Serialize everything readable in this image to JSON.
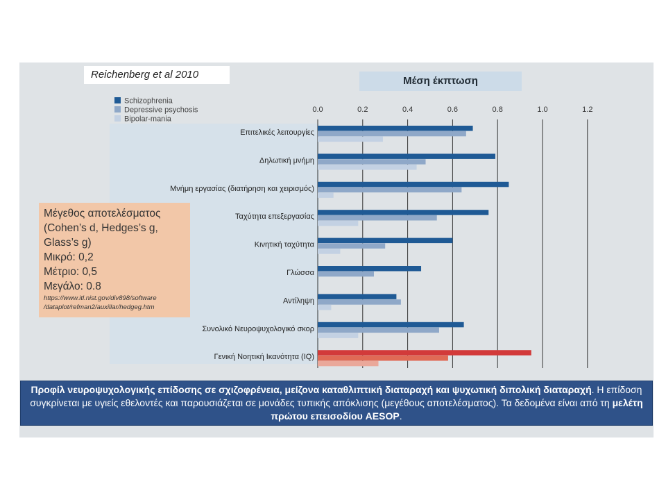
{
  "citation": "Reichenberg et al 2010",
  "chart_data": {
    "type": "bar",
    "orientation": "horizontal",
    "title": "Μέση έκπτωση",
    "xlim": [
      0,
      1.2
    ],
    "x_ticks": [
      "0.0",
      "0.2",
      "0.4",
      "0.6",
      "0.8",
      "1.0",
      "1.2"
    ],
    "grid": true,
    "legend_position": "top-left",
    "categories": [
      "Επιτελικές λειτουργίες",
      "Δηλωτική μνήμη",
      "Μνήμη εργασίας (διατήρηση και χειρισμός)",
      "Ταχύτητα επεξεργασίας",
      "Κινητική ταχύτητα",
      "Γλώσσα",
      "Αντίληψη",
      "Συνολικό Νευροψυχολογικό σκορ",
      "Γενική Νοητική Ικανότητα (IQ)"
    ],
    "series": [
      {
        "name": "Schizophrenia",
        "values": [
          0.69,
          0.79,
          0.85,
          0.76,
          0.6,
          0.46,
          0.35,
          0.65,
          0.95
        ],
        "color": "#1f5a95"
      },
      {
        "name": "Depressive psychosis",
        "values": [
          0.66,
          0.48,
          0.64,
          0.53,
          0.3,
          0.25,
          0.37,
          0.54,
          0.58
        ],
        "color": "#8fa8c8"
      },
      {
        "name": "Bipolar-mania",
        "values": [
          0.29,
          0.44,
          0.07,
          0.18,
          0.1,
          0.0,
          0.06,
          0.18,
          0.27
        ],
        "color": "#c3d1e3"
      }
    ],
    "highlight_category_colors": [
      "#d23a3a",
      "#e06a55",
      "#eaa89a"
    ]
  },
  "effect_size": {
    "lines": [
      "Μέγεθος αποτελέσματος",
      "(Cohen’s d, Hedges’s g,",
      "Glass’s  g)",
      "Μικρό: 0,2",
      "Μέτριο: 0,5",
      "Μεγάλο: 0.8"
    ],
    "url_lines": [
      "https://www.itl.nist.gov/div898/software",
      "/dataplot/refman2/auxillar/hedgeg.htm"
    ]
  },
  "caption": {
    "bold": "Προφίλ νευροψυχολογικής επίδοσης σε σχιζοφρένεια, μείζονα καταθλιπτική διαταραχή και ψυχωτική διπολική διαταραχή",
    "text1": ". Η επίδοση συγκρίνεται με υγιείς εθελοντές και παρουσιάζεται σε μονάδες τυπικής απόκλισης (μεγέθους αποτελέσματος). Τα δεδομένα είναι από τη ",
    "bold2": "μελέτη πρώτου επεισοδίου AESOP",
    "text2": "."
  }
}
